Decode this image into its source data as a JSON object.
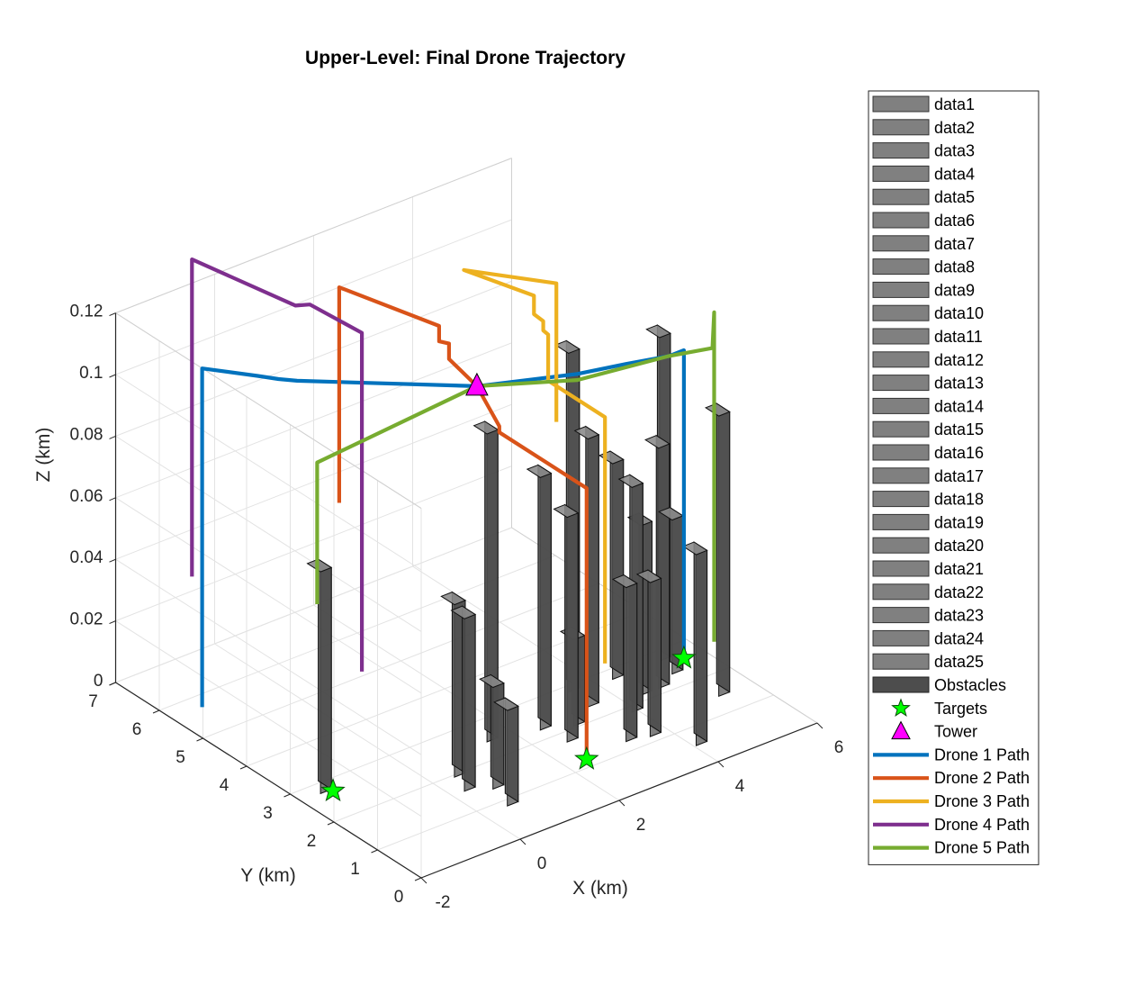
{
  "chart_data": {
    "type": "line",
    "title": "Upper-Level: Final Drone Trajectory",
    "xlabel": "X (km)",
    "ylabel": "Y (km)",
    "zlabel": "Z (km)",
    "xlim": [
      -2,
      6
    ],
    "ylim": [
      0,
      7
    ],
    "zlim": [
      0,
      0.12
    ],
    "xticks": [
      "-2",
      "0",
      "2",
      "4",
      "6"
    ],
    "yticks": [
      "0",
      "1",
      "2",
      "3",
      "4",
      "5",
      "6",
      "7"
    ],
    "zticks": [
      "0",
      "0.02",
      "0.04",
      "0.06",
      "0.08",
      "0.1",
      "0.12"
    ],
    "grid": true,
    "legend_position": "outside-right",
    "legend": [
      "data1",
      "data2",
      "data3",
      "data4",
      "data5",
      "data6",
      "data7",
      "data8",
      "data9",
      "data10",
      "data11",
      "data12",
      "data13",
      "data14",
      "data15",
      "data16",
      "data17",
      "data18",
      "data19",
      "data20",
      "data21",
      "data22",
      "data23",
      "data24",
      "data25",
      "Obstacles",
      "Targets",
      "Tower",
      "Drone 1 Path",
      "Drone 2 Path",
      "Drone 3 Path",
      "Drone 4 Path",
      "Drone 5 Path"
    ],
    "obstacle_color": "#4d4d4d",
    "target_color": "#00ff00",
    "tower_color": "#ff00ff",
    "tower": [
      2.3,
      3.6,
      0.1
    ],
    "targets": [
      [
        -1.4,
        2.7,
        0
      ],
      [
        2.4,
        1.2,
        0
      ],
      [
        5.6,
        2.6,
        0
      ]
    ],
    "obstacles": [
      {
        "x": -1.5,
        "y": 2.9,
        "h": 0.072
      },
      {
        "x": 0.6,
        "y": 1.0,
        "h": 0.031
      },
      {
        "x": 0.5,
        "y": 2.1,
        "h": 0.056
      },
      {
        "x": 0.35,
        "y": 1.7,
        "h": 0.056
      },
      {
        "x": 0.75,
        "y": 1.5,
        "h": 0.033
      },
      {
        "x": 1.6,
        "y": 2.6,
        "h": 0.1
      },
      {
        "x": 2.5,
        "y": 2.4,
        "h": 0.082
      },
      {
        "x": 2.6,
        "y": 1.9,
        "h": 0.073
      },
      {
        "x": 3.0,
        "y": 2.2,
        "h": 0.028
      },
      {
        "x": 3.6,
        "y": 3.0,
        "h": 0.11
      },
      {
        "x": 3.55,
        "y": 2.5,
        "h": 0.087
      },
      {
        "x": 3.35,
        "y": 1.4,
        "h": 0.05
      },
      {
        "x": 3.75,
        "y": 1.3,
        "h": 0.05
      },
      {
        "x": 4.0,
        "y": 2.0,
        "h": 0.073
      },
      {
        "x": 4.4,
        "y": 2.9,
        "h": 0.07
      },
      {
        "x": 4.45,
        "y": 2.3,
        "h": 0.055
      },
      {
        "x": 4.8,
        "y": 2.3,
        "h": 0.078
      },
      {
        "x": 5.35,
        "y": 2.9,
        "h": 0.105
      },
      {
        "x": 5.25,
        "y": 2.5,
        "h": 0.05
      },
      {
        "x": 5.4,
        "y": 1.6,
        "h": 0.091
      },
      {
        "x": 4.15,
        "y": 0.7,
        "h": 0.062
      }
    ],
    "series": [
      {
        "name": "Drone 1 Path",
        "color": "#0072bd",
        "points": [
          [
            -1.4,
            5.7,
            0
          ],
          [
            -1.4,
            5.7,
            0.11
          ],
          [
            -0.85,
            5.05,
            0.11
          ],
          [
            -0.65,
            4.8,
            0.11
          ],
          [
            -0.45,
            4.6,
            0.11
          ],
          [
            2.3,
            3.6,
            0.1
          ],
          [
            3.8,
            3.0,
            0.1
          ],
          [
            4.6,
            2.8,
            0.1
          ],
          [
            5.3,
            2.6,
            0.1
          ],
          [
            5.6,
            2.6,
            0.1
          ],
          [
            5.6,
            2.6,
            0
          ]
        ]
      },
      {
        "name": "Drone 2 Path",
        "color": "#d95319",
        "points": [
          [
            0.4,
            4.6,
            0.065
          ],
          [
            0.4,
            4.6,
            0.135
          ],
          [
            1.8,
            3.9,
            0.12
          ],
          [
            1.8,
            3.9,
            0.115
          ],
          [
            2.0,
            3.9,
            0.113
          ],
          [
            2.0,
            3.9,
            0.108
          ],
          [
            2.3,
            3.6,
            0.1
          ],
          [
            2.4,
            3.2,
            0.09
          ],
          [
            2.4,
            3.2,
            0.088
          ],
          [
            2.4,
            1.2,
            0.088
          ],
          [
            2.4,
            1.2,
            0
          ]
        ]
      },
      {
        "name": "Drone 3 Path",
        "color": "#edb120",
        "points": [
          [
            3.2,
            2.8,
            0.09
          ],
          [
            3.2,
            2.8,
            0.135
          ],
          [
            2.3,
            3.9,
            0.135
          ],
          [
            3.1,
            3.2,
            0.128
          ],
          [
            3.1,
            3.2,
            0.122
          ],
          [
            3.2,
            3.1,
            0.12
          ],
          [
            3.2,
            3.1,
            0.117
          ],
          [
            3.3,
            3.1,
            0.115
          ],
          [
            3.3,
            3.1,
            0.1
          ],
          [
            3.3,
            1.8,
            0.1
          ],
          [
            3.3,
            1.8,
            0.02
          ]
        ]
      },
      {
        "name": "Drone 4 Path",
        "color": "#7e2f8e",
        "points": [
          [
            -0.9,
            6.5,
            0.032
          ],
          [
            -0.9,
            6.5,
            0.135
          ],
          [
            0.4,
            5.6,
            0.12
          ],
          [
            0.6,
            5.5,
            0.12
          ],
          [
            1.3,
            5.1,
            0.11
          ],
          [
            1.3,
            5.1,
            0
          ]
        ]
      },
      {
        "name": "Drone 5 Path",
        "color": "#77ac30",
        "points": [
          [
            -1.5,
            2.95,
            0.059
          ],
          [
            -1.5,
            2.95,
            0.105
          ],
          [
            2.3,
            3.6,
            0.1
          ],
          [
            3.8,
            3.0,
            0.098
          ],
          [
            5.3,
            2.6,
            0.1
          ],
          [
            6.0,
            2.4,
            0.1
          ],
          [
            6.3,
            2.7,
            0.107
          ],
          [
            6.3,
            2.7,
            0
          ]
        ]
      }
    ]
  }
}
